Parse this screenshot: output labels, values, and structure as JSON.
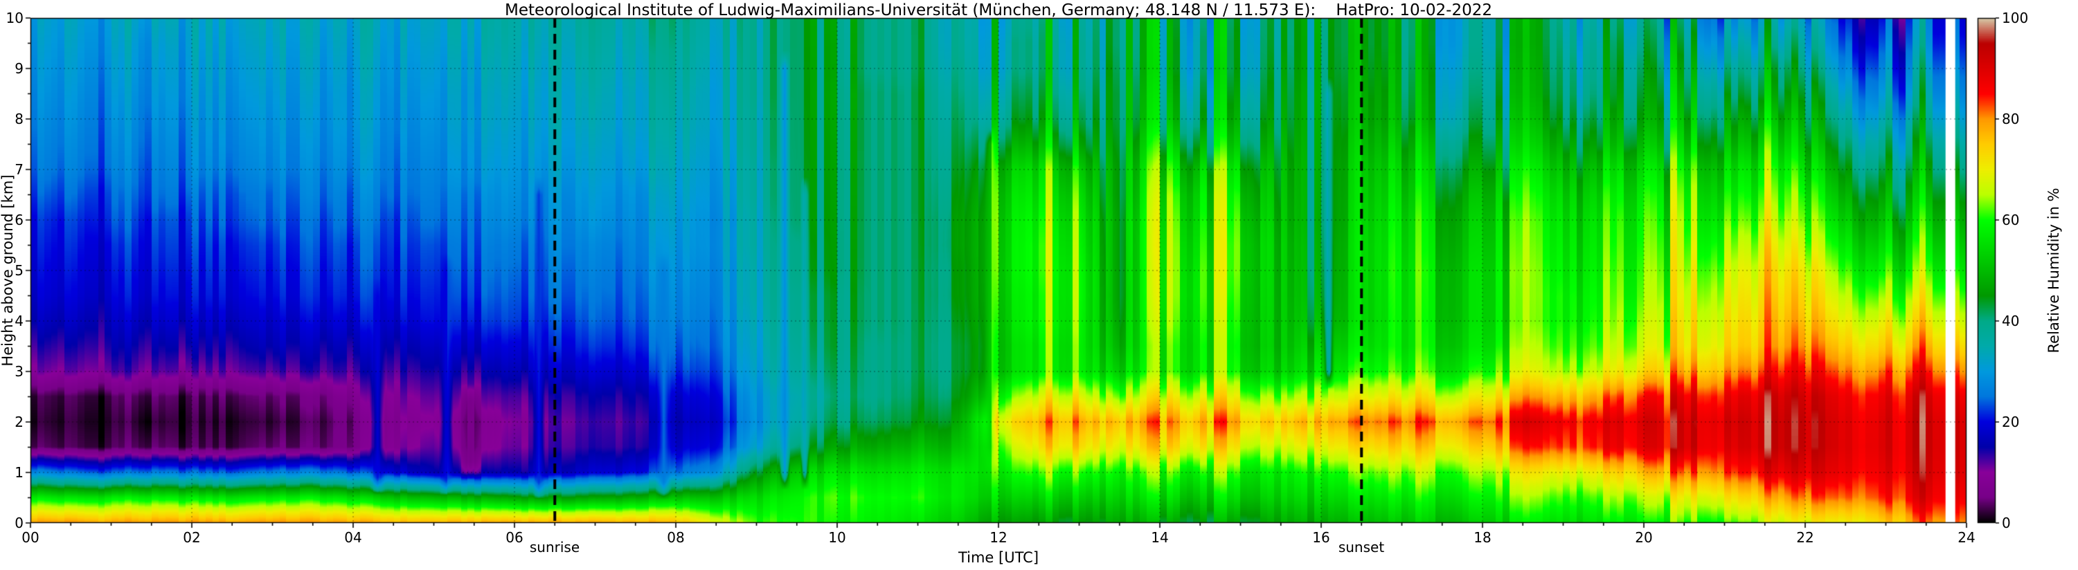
{
  "figure": {
    "title": "Meteorological Institute of Ludwig-Maximilians-Universität (München, Germany; 48.148 N / 11.573 E):    HatPro: 10-02-2022"
  },
  "axes": {
    "xlabel": "Time [UTC]",
    "ylabel": "Height above ground [km]",
    "xlim": [
      0,
      24
    ],
    "ylim": [
      0,
      10
    ],
    "x_tick_values": [
      0,
      2,
      4,
      6,
      8,
      10,
      12,
      14,
      16,
      18,
      20,
      22,
      24
    ],
    "x_tick_labels": [
      "00",
      "02",
      "04",
      "06",
      "08",
      "10",
      "12",
      "14",
      "16",
      "18",
      "20",
      "22",
      "24"
    ],
    "x_minor_step": 0.5,
    "y_tick_values": [
      0,
      1,
      2,
      3,
      4,
      5,
      6,
      7,
      8,
      9,
      10
    ],
    "y_tick_labels": [
      "0",
      "1",
      "2",
      "3",
      "4",
      "5",
      "6",
      "7",
      "8",
      "9",
      "10"
    ],
    "y_minor_step": 0.5,
    "grid": {
      "show": true,
      "color": "#000000",
      "alpha": 0.5,
      "dash": [
        2,
        4
      ]
    }
  },
  "colorbar": {
    "label": "Relative Humidity in %",
    "min": 0,
    "max": 100,
    "tick_values": [
      0,
      20,
      40,
      60,
      80,
      100
    ],
    "tick_labels": [
      "0",
      "20",
      "40",
      "60",
      "80",
      "100"
    ],
    "colormap_name": "nipy_spectral",
    "stops": [
      {
        "p": 0.0,
        "c": "#000000"
      },
      {
        "p": 0.05,
        "c": "#770088"
      },
      {
        "p": 0.1,
        "c": "#880099"
      },
      {
        "p": 0.15,
        "c": "#0000AA"
      },
      {
        "p": 0.2,
        "c": "#0000DD"
      },
      {
        "p": 0.25,
        "c": "#0077DD"
      },
      {
        "p": 0.3,
        "c": "#0099DD"
      },
      {
        "p": 0.35,
        "c": "#00AAAA"
      },
      {
        "p": 0.4,
        "c": "#00AA88"
      },
      {
        "p": 0.45,
        "c": "#009900"
      },
      {
        "p": 0.5,
        "c": "#00BB00"
      },
      {
        "p": 0.55,
        "c": "#00DD00"
      },
      {
        "p": 0.6,
        "c": "#00FF00"
      },
      {
        "p": 0.65,
        "c": "#BBFF00"
      },
      {
        "p": 0.7,
        "c": "#EEEE00"
      },
      {
        "p": 0.75,
        "c": "#FFCC00"
      },
      {
        "p": 0.8,
        "c": "#FF9900"
      },
      {
        "p": 0.85,
        "c": "#FF0000"
      },
      {
        "p": 0.9,
        "c": "#DD0000"
      },
      {
        "p": 0.95,
        "c": "#BB0000"
      },
      {
        "p": 1.0,
        "c": "#D6C9A8"
      }
    ]
  },
  "annotations": {
    "sunrise": {
      "label": "sunrise",
      "time": 6.5
    },
    "sunset": {
      "label": "sunset",
      "time": 16.5
    },
    "line_style": {
      "color": "#000000",
      "dash": [
        14,
        9
      ],
      "width": 4
    }
  },
  "chart_data": {
    "type": "heatmap",
    "value_name": "Relative Humidity in %",
    "x_hours": [
      0,
      0.5,
      1,
      1.5,
      2,
      2.5,
      3,
      3.5,
      4,
      4.5,
      5,
      5.5,
      6,
      6.5,
      7,
      7.5,
      8,
      8.5,
      9,
      9.5,
      10,
      10.5,
      11,
      11.5,
      12,
      12.5,
      13,
      13.5,
      14,
      14.5,
      15,
      15.5,
      16,
      16.5,
      17,
      17.5,
      18,
      18.5,
      19,
      19.5,
      20,
      20.5,
      21,
      21.5,
      22,
      22.5,
      23,
      23.5,
      24
    ],
    "y_km": [
      0,
      0.5,
      1,
      1.5,
      2,
      2.5,
      3,
      3.5,
      4,
      4.5,
      5,
      5.5,
      6,
      6.5,
      7,
      7.5,
      8,
      8.5,
      9,
      9.5,
      10
    ],
    "values_by_time_column_bottom_to_top": [
      [
        80,
        58,
        28,
        4,
        2,
        3,
        11,
        14,
        17,
        19,
        20,
        21,
        22,
        24,
        26,
        27,
        28,
        29,
        30,
        31,
        32
      ],
      [
        80,
        56,
        25,
        3,
        2,
        3,
        11,
        14,
        17,
        19,
        20,
        21,
        22,
        24,
        26,
        27,
        28,
        29,
        30,
        31,
        32
      ],
      [
        79,
        57,
        24,
        3,
        2,
        3,
        12,
        15,
        17,
        19,
        20,
        21,
        23,
        24,
        26,
        27,
        28,
        29,
        30,
        31,
        32
      ],
      [
        80,
        58,
        26,
        4,
        2,
        4,
        12,
        15,
        18,
        20,
        21,
        22,
        23,
        25,
        26,
        27,
        28,
        29,
        30,
        31,
        33
      ],
      [
        80,
        57,
        25,
        3,
        2,
        3,
        11,
        15,
        18,
        20,
        21,
        22,
        23,
        25,
        27,
        28,
        29,
        30,
        31,
        32,
        33
      ],
      [
        79,
        56,
        24,
        3,
        2,
        4,
        12,
        15,
        18,
        20,
        21,
        22,
        24,
        25,
        27,
        28,
        29,
        30,
        31,
        32,
        33
      ],
      [
        80,
        57,
        26,
        4,
        2,
        4,
        12,
        16,
        18,
        20,
        21,
        22,
        24,
        25,
        27,
        28,
        29,
        30,
        31,
        32,
        33
      ],
      [
        80,
        58,
        27,
        4,
        3,
        5,
        13,
        16,
        19,
        21,
        22,
        23,
        24,
        26,
        27,
        28,
        29,
        30,
        31,
        32,
        33
      ],
      [
        79,
        55,
        24,
        6,
        5,
        8,
        13,
        16,
        19,
        21,
        22,
        23,
        25,
        26,
        28,
        29,
        30,
        30,
        31,
        32,
        33
      ],
      [
        78,
        52,
        20,
        10,
        9,
        11,
        14,
        17,
        20,
        22,
        23,
        24,
        25,
        27,
        28,
        29,
        30,
        31,
        32,
        33,
        34
      ],
      [
        78,
        50,
        16,
        12,
        10,
        12,
        15,
        18,
        21,
        22,
        23,
        24,
        26,
        27,
        28,
        29,
        30,
        31,
        32,
        33,
        34
      ],
      [
        78,
        48,
        14,
        7,
        6,
        10,
        14,
        18,
        21,
        23,
        24,
        25,
        26,
        27,
        29,
        30,
        31,
        31,
        32,
        33,
        34
      ],
      [
        78,
        46,
        15,
        11,
        10,
        12,
        16,
        19,
        22,
        23,
        24,
        25,
        27,
        28,
        29,
        30,
        31,
        32,
        33,
        34,
        35
      ],
      [
        78,
        45,
        16,
        12,
        11,
        13,
        17,
        20,
        22,
        24,
        25,
        26,
        27,
        28,
        30,
        31,
        32,
        32,
        33,
        34,
        35
      ],
      [
        78,
        46,
        18,
        13,
        12,
        14,
        18,
        21,
        23,
        24,
        25,
        26,
        28,
        29,
        30,
        31,
        32,
        33,
        34,
        35,
        36
      ],
      [
        78,
        48,
        20,
        14,
        13,
        15,
        19,
        22,
        24,
        25,
        26,
        27,
        28,
        29,
        31,
        32,
        33,
        33,
        34,
        35,
        36
      ],
      [
        76,
        50,
        24,
        17,
        15,
        17,
        21,
        23,
        25,
        26,
        27,
        28,
        29,
        30,
        31,
        32,
        33,
        34,
        35,
        36,
        37
      ],
      [
        70,
        52,
        30,
        22,
        20,
        22,
        25,
        27,
        28,
        29,
        30,
        31,
        31,
        32,
        33,
        34,
        35,
        35,
        36,
        37,
        38
      ],
      [
        62,
        56,
        45,
        33,
        30,
        31,
        33,
        34,
        35,
        36,
        36,
        37,
        37,
        38,
        38,
        39,
        39,
        40,
        40,
        40,
        40
      ],
      [
        60,
        58,
        52,
        40,
        35,
        34,
        36,
        37,
        38,
        38,
        39,
        39,
        40,
        40,
        40,
        40,
        40,
        40,
        40,
        40,
        40
      ],
      [
        58,
        60,
        55,
        45,
        40,
        38,
        39,
        40,
        40,
        40,
        41,
        41,
        41,
        41,
        41,
        41,
        41,
        41,
        40,
        40,
        40
      ],
      [
        58,
        60,
        56,
        48,
        42,
        40,
        40,
        40,
        41,
        41,
        41,
        41,
        41,
        41,
        41,
        41,
        41,
        41,
        40,
        40,
        40
      ],
      [
        56,
        60,
        57,
        50,
        44,
        42,
        41,
        41,
        41,
        41,
        41,
        41,
        41,
        41,
        41,
        41,
        41,
        41,
        40,
        40,
        40
      ],
      [
        54,
        58,
        58,
        52,
        48,
        45,
        44,
        44,
        45,
        46,
        46,
        47,
        47,
        46,
        45,
        44,
        43,
        42,
        41,
        40,
        40
      ],
      [
        48,
        55,
        60,
        65,
        72,
        62,
        55,
        55,
        56,
        57,
        58,
        58,
        58,
        57,
        55,
        50,
        45,
        43,
        41,
        41,
        40
      ],
      [
        46,
        54,
        62,
        72,
        78,
        68,
        58,
        58,
        60,
        60,
        61,
        61,
        60,
        58,
        56,
        50,
        45,
        43,
        41,
        41,
        40
      ],
      [
        46,
        54,
        62,
        74,
        80,
        70,
        60,
        60,
        61,
        62,
        62,
        61,
        60,
        58,
        55,
        49,
        45,
        43,
        41,
        41,
        40
      ],
      [
        47,
        53,
        58,
        68,
        75,
        62,
        52,
        48,
        46,
        45,
        45,
        45,
        45,
        44,
        44,
        43,
        42,
        42,
        41,
        40,
        40
      ],
      [
        46,
        54,
        60,
        72,
        78,
        68,
        58,
        58,
        60,
        61,
        61,
        61,
        60,
        58,
        55,
        50,
        45,
        43,
        41,
        41,
        40
      ],
      [
        46,
        54,
        61,
        73,
        80,
        70,
        60,
        60,
        61,
        62,
        62,
        61,
        60,
        59,
        56,
        50,
        45,
        43,
        41,
        41,
        40
      ],
      [
        46,
        54,
        60,
        70,
        78,
        68,
        58,
        57,
        58,
        59,
        60,
        60,
        59,
        57,
        54,
        49,
        45,
        43,
        41,
        41,
        40
      ],
      [
        47,
        53,
        57,
        66,
        74,
        62,
        52,
        50,
        50,
        50,
        50,
        50,
        49,
        48,
        47,
        45,
        43,
        42,
        41,
        40,
        40
      ],
      [
        47,
        53,
        58,
        68,
        76,
        64,
        54,
        50,
        46,
        44,
        43,
        42,
        41,
        41,
        41,
        41,
        41,
        41,
        40,
        40,
        40
      ],
      [
        48,
        54,
        60,
        70,
        78,
        66,
        56,
        52,
        50,
        50,
        50,
        50,
        49,
        48,
        47,
        45,
        43,
        42,
        41,
        40,
        40
      ],
      [
        50,
        56,
        62,
        72,
        80,
        68,
        58,
        55,
        55,
        55,
        55,
        54,
        53,
        51,
        49,
        46,
        43,
        42,
        41,
        40,
        40
      ],
      [
        52,
        58,
        64,
        74,
        82,
        70,
        60,
        57,
        56,
        56,
        56,
        55,
        54,
        52,
        50,
        47,
        43,
        42,
        41,
        40,
        40
      ],
      [
        54,
        60,
        66,
        76,
        84,
        72,
        62,
        58,
        57,
        57,
        57,
        56,
        55,
        53,
        50,
        47,
        44,
        42,
        41,
        40,
        40
      ],
      [
        55,
        61,
        68,
        80,
        86,
        75,
        64,
        60,
        58,
        58,
        58,
        57,
        56,
        54,
        51,
        47,
        44,
        42,
        41,
        40,
        40
      ],
      [
        56,
        62,
        70,
        84,
        88,
        78,
        66,
        62,
        60,
        60,
        59,
        58,
        57,
        55,
        52,
        48,
        44,
        42,
        41,
        40,
        39
      ],
      [
        57,
        63,
        72,
        86,
        88,
        80,
        68,
        64,
        62,
        61,
        60,
        59,
        58,
        56,
        53,
        48,
        45,
        42,
        41,
        40,
        38
      ],
      [
        58,
        65,
        76,
        88,
        90,
        84,
        72,
        66,
        64,
        62,
        61,
        60,
        59,
        57,
        54,
        49,
        45,
        43,
        41,
        39,
        37
      ],
      [
        60,
        68,
        80,
        90,
        90,
        86,
        76,
        70,
        68,
        66,
        64,
        62,
        60,
        58,
        55,
        50,
        46,
        43,
        40,
        37,
        34
      ],
      [
        62,
        72,
        84,
        90,
        92,
        88,
        80,
        74,
        72,
        70,
        68,
        65,
        62,
        59,
        56,
        51,
        47,
        43,
        39,
        35,
        31
      ],
      [
        64,
        75,
        86,
        92,
        92,
        90,
        82,
        76,
        74,
        72,
        70,
        67,
        63,
        60,
        57,
        52,
        47,
        42,
        39,
        34,
        30
      ],
      [
        68,
        80,
        88,
        92,
        92,
        90,
        84,
        78,
        74,
        71,
        68,
        64,
        60,
        57,
        53,
        48,
        44,
        40,
        36,
        32,
        28
      ],
      [
        72,
        84,
        90,
        92,
        92,
        90,
        84,
        78,
        73,
        69,
        65,
        61,
        57,
        53,
        49,
        45,
        41,
        37,
        33,
        29,
        26
      ],
      [
        76,
        86,
        90,
        92,
        92,
        90,
        84,
        77,
        72,
        67,
        62,
        58,
        54,
        50,
        46,
        42,
        38,
        34,
        31,
        28,
        25
      ],
      [
        80,
        88,
        91,
        92,
        92,
        90,
        83,
        76,
        70,
        65,
        60,
        56,
        52,
        48,
        44,
        40,
        36,
        32,
        29,
        26,
        24
      ],
      [
        82,
        88,
        91,
        92,
        92,
        89,
        82,
        75,
        69,
        64,
        59,
        55,
        51,
        47,
        43,
        39,
        35,
        31,
        28,
        25,
        23
      ]
    ],
    "streaks": [
      {
        "t": 4.3,
        "h0": 0.9,
        "h1": 4.5,
        "value": 20,
        "w": 0.1
      },
      {
        "t": 5.15,
        "h0": 0.9,
        "h1": 5.0,
        "value": 22,
        "w": 0.09
      },
      {
        "t": 5.45,
        "h0": 1.2,
        "h1": 2.4,
        "value": 5,
        "w": 0.15
      },
      {
        "t": 6.3,
        "h0": 0.8,
        "h1": 6.5,
        "value": 22,
        "w": 0.08
      },
      {
        "t": 7.85,
        "h0": 0.8,
        "h1": 5.0,
        "value": 24,
        "w": 0.1
      },
      {
        "t": 9.35,
        "h0": 1.0,
        "h1": 9.0,
        "value": 27,
        "w": 0.07
      },
      {
        "t": 9.6,
        "h0": 1.0,
        "h1": 6.5,
        "value": 30,
        "w": 0.06
      },
      {
        "t": 11.9,
        "h0": 1.5,
        "h1": 7.5,
        "value": 58,
        "w": 0.08
      },
      {
        "t": 16.1,
        "h0": 3.0,
        "h1": 8.5,
        "value": 30,
        "w": 0.07
      }
    ],
    "missing_strips": [
      {
        "t0": 23.74,
        "t1": 23.86
      }
    ],
    "texture_segments": [
      {
        "t0": 0,
        "t1": 8.5,
        "amp": 2.5
      },
      {
        "t0": 8.5,
        "t1": 11.5,
        "amp": 4
      },
      {
        "t0": 11.5,
        "t1": 16.5,
        "amp": 7
      },
      {
        "t0": 16.5,
        "t1": 19,
        "amp": 6
      },
      {
        "t0": 19,
        "t1": 24.01,
        "amp": 7
      }
    ]
  }
}
